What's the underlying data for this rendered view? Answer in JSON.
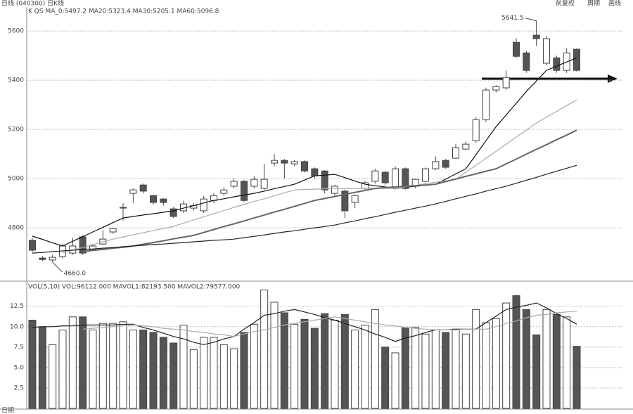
{
  "header": {
    "left": "日线 (040300) 日K线",
    "right": [
      "前复权",
      "周期",
      "画线"
    ],
    "footer": "日期"
  },
  "chart_data": [
    {
      "type": "candlestick",
      "title": "K  QS MA_0:5497.2 MA20:5323.4 MA30:5205.1 MA60:5096.8",
      "open": [
        4749,
        4677,
        4669,
        4683,
        4697,
        4763,
        4711,
        4734,
        4783,
        4880,
        4940,
        4974,
        4931,
        4917,
        4877,
        4869,
        4880,
        4869,
        4911,
        4940,
        4969,
        4989,
        4969,
        4960,
        5063,
        5074,
        5060,
        5069,
        5040,
        5031,
        4940,
        4949,
        4903,
        4960,
        4989,
        5026,
        4960,
        5040,
        4969,
        4989,
        5040,
        5074,
        5083,
        5120,
        5154,
        5240,
        5360,
        5369,
        5554,
        5511,
        5583,
        5469,
        5491,
        5440,
        5526
      ],
      "high": [
        4760,
        4685,
        4690,
        4735,
        4760,
        4770,
        4735,
        4790,
        4800,
        4900,
        4960,
        4980,
        4935,
        4920,
        4885,
        4910,
        4900,
        4930,
        4940,
        4965,
        5000,
        4995,
        5010,
        5060,
        5100,
        5080,
        5075,
        5075,
        5045,
        5035,
        4975,
        4955,
        4935,
        4990,
        5040,
        5030,
        5050,
        5045,
        5000,
        5045,
        5090,
        5080,
        5140,
        5150,
        5250,
        5370,
        5380,
        5440,
        5570,
        5520,
        5641.5,
        5580,
        5500,
        5530,
        5530
      ],
      "low": [
        4700,
        4665,
        4660,
        4675,
        4690,
        4690,
        4705,
        4730,
        4775,
        4830,
        4900,
        4940,
        4895,
        4890,
        4840,
        4860,
        4870,
        4860,
        4900,
        4930,
        4960,
        4905,
        4960,
        4955,
        5050,
        5000,
        5050,
        5025,
        5000,
        4940,
        4930,
        4840,
        4880,
        4955,
        4980,
        4975,
        4955,
        4955,
        4960,
        4985,
        5035,
        5040,
        5080,
        5115,
        5145,
        5230,
        5350,
        5360,
        5490,
        5430,
        5540,
        5460,
        5430,
        5430,
        5435
      ],
      "close": [
        4709,
        4671,
        4680,
        4726,
        4726,
        4697,
        4726,
        4754,
        4797,
        4883,
        4954,
        4949,
        4903,
        4903,
        4846,
        4897,
        4891,
        4917,
        4931,
        4954,
        4989,
        4911,
        4997,
        4997,
        5074,
        5063,
        5069,
        5031,
        5011,
        4954,
        4969,
        4869,
        4931,
        4983,
        5031,
        4983,
        5040,
        4960,
        4997,
        5040,
        5069,
        5046,
        5126,
        5140,
        5240,
        5360,
        5374,
        5411,
        5497,
        5440,
        5569,
        5569,
        5440,
        5511,
        5440
      ],
      "high_label": "5641.5",
      "low_label": "4660.0",
      "series": [
        {
          "color": "#111",
          "values": [
            4766,
            4753,
            4739,
            4726,
            4745,
            4764,
            4783,
            4802,
            4821,
            4840,
            4846,
            4852,
            4857,
            4863,
            4869,
            4880,
            4890,
            4901,
            4911,
            4918,
            4926,
            4933,
            4940,
            4949,
            4959,
            4968,
            4977,
            4994,
            5011,
            5014,
            5017,
            5004,
            4990,
            4977,
            4971,
            4966,
            4960,
            4964,
            4969,
            4973,
            4977,
            4998,
            5019,
            5040,
            5097,
            5154,
            5211,
            5259,
            5306,
            5354,
            5397,
            5440,
            5457,
            5474,
            5491
          ]
        },
        {
          "color": "#aaa",
          "values": [
            null,
            null,
            null,
            4697,
            4708,
            4720,
            4731,
            4743,
            4754,
            4763,
            4771,
            4780,
            4789,
            4797,
            4806,
            4819,
            4832,
            4845,
            4857,
            4870,
            4883,
            4895,
            4907,
            4918,
            4930,
            4942,
            4954,
            4956,
            4957,
            4959,
            4960,
            4960,
            4960,
            4960,
            4960,
            4960,
            4960,
            4966,
            4972,
            4979,
            4985,
            4991,
            4997,
            5026,
            5054,
            5083,
            5111,
            5140,
            5169,
            5197,
            5226,
            5250,
            5273,
            5297,
            5320
          ]
        },
        {
          "color": "#666",
          "values": [
            null,
            null,
            null,
            null,
            null,
            4703,
            4708,
            4712,
            4717,
            4721,
            4726,
            4733,
            4740,
            4747,
            4755,
            4762,
            4769,
            4781,
            4793,
            4805,
            4816,
            4828,
            4840,
            4852,
            4864,
            4875,
            4887,
            4899,
            4911,
            4919,
            4927,
            4936,
            4944,
            4952,
            4960,
            4963,
            4966,
            4969,
            4971,
            4974,
            4977,
            4988,
            4998,
            5009,
            5019,
            5030,
            5040,
            5060,
            5079,
            5099,
            5119,
            5138,
            5158,
            5177,
            5197
          ]
        },
        {
          "color": "#222",
          "values": [
            4697,
            4700,
            4703,
            4706,
            4709,
            4712,
            4714,
            4717,
            4720,
            4723,
            4726,
            4729,
            4732,
            4734,
            4737,
            4740,
            4743,
            4746,
            4749,
            4751,
            4754,
            4760,
            4765,
            4771,
            4777,
            4783,
            4788,
            4794,
            4800,
            4805,
            4811,
            4820,
            4828,
            4837,
            4845,
            4854,
            4863,
            4871,
            4880,
            4888,
            4897,
            4907,
            4918,
            4928,
            4938,
            4949,
            4959,
            4969,
            4981,
            4993,
            5005,
            5018,
            5030,
            5042,
            5054
          ]
        }
      ],
      "ylim": [
        4583,
        5669
      ],
      "yticks": [
        4800,
        5000,
        5200,
        5400,
        5600
      ],
      "grid": true
    },
    {
      "type": "bar",
      "title": "VOL(5,10) VOL:96112.000 MAVOL1:82193.500 MAVOL2:79577.000",
      "values": [
        10.8,
        10.0,
        7.8,
        9.6,
        11.2,
        11.2,
        9.6,
        10.4,
        10.4,
        10.6,
        9.6,
        9.6,
        9.3,
        8.7,
        8.0,
        10.2,
        7.2,
        8.7,
        8.7,
        7.8,
        7.3,
        9.3,
        10.3,
        14.5,
        13.0,
        11.7,
        10.3,
        10.9,
        9.8,
        11.6,
        10.8,
        11.5,
        9.6,
        10.2,
        12.1,
        7.5,
        6.8,
        9.9,
        9.9,
        9.1,
        9.6,
        9.3,
        9.7,
        9.1,
        12.1,
        10.5,
        11.0,
        12.9,
        13.8,
        12.1,
        9.0,
        12.1,
        11.5,
        11.2,
        7.6
      ],
      "series": [
        {
          "color": "#222",
          "values": [
            9.9,
            10.0,
            10.0,
            10.1,
            10.1,
            10.2,
            10.2,
            10.2,
            10.2,
            10.3,
            10.3,
            9.9,
            9.6,
            9.2,
            8.8,
            8.5,
            8.1,
            7.8,
            8.1,
            8.5,
            8.8,
            9.7,
            10.5,
            11.4,
            11.6,
            11.9,
            12.1,
            11.8,
            11.5,
            11.1,
            10.8,
            10.4,
            10.0,
            9.6,
            9.1,
            8.7,
            8.2,
            8.6,
            8.9,
            9.3,
            9.6,
            9.6,
            9.7,
            9.7,
            9.7,
            10.5,
            11.3,
            12.1,
            12.4,
            12.6,
            12.9,
            12.3,
            11.6,
            11.0,
            10.3
          ]
        },
        {
          "color": "#aaa",
          "values": [
            null,
            null,
            null,
            null,
            null,
            9.7,
            9.8,
            9.9,
            10.0,
            10.1,
            10.2,
            10.1,
            10.0,
            9.8,
            9.7,
            9.6,
            9.4,
            9.3,
            9.1,
            9.0,
            8.8,
            9.1,
            9.4,
            9.6,
            9.9,
            10.2,
            10.4,
            10.6,
            10.8,
            11.0,
            11.2,
            11.0,
            10.8,
            10.6,
            10.4,
            10.2,
            10.1,
            9.9,
            9.8,
            9.7,
            9.6,
            9.6,
            9.6,
            9.7,
            9.7,
            9.7,
            10.0,
            10.4,
            10.7,
            11.1,
            11.4,
            11.5,
            11.7,
            11.8,
            11.9
          ]
        }
      ],
      "ylim": [
        0,
        15.4
      ],
      "yticks": [
        2.5,
        {
          "value": 5,
          "label": "5.0"
        },
        7.5,
        {
          "value": 10,
          "label": "10.0"
        },
        12.5
      ],
      "grid": true
    }
  ]
}
